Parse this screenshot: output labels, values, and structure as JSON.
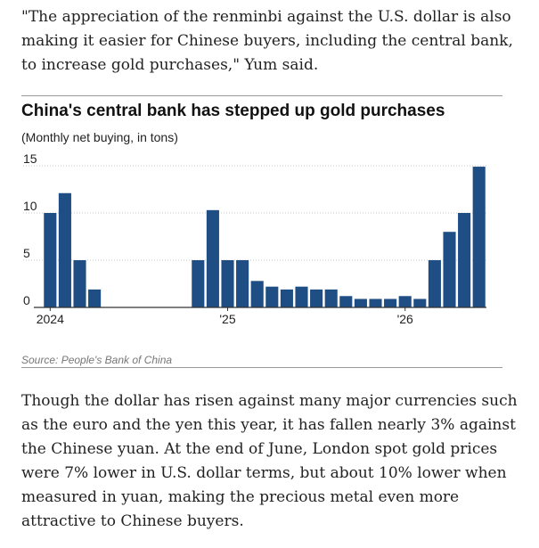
{
  "article": {
    "quote_paragraph": "\"The appreciation of the renminbi against the U.S. dollar is also making it easier for Chinese buyers, including the central bank, to increase gold purchases,\" Yum said.",
    "body_paragraph": "Though the dollar has risen against many major currencies such as the euro and the yen this year, it has fallen nearly 3% against the Chinese yuan. At the end of June, London spot gold prices were 7% lower in U.S. dollar terms, but about 10% lower when measured in yuan, making the precious metal even more attractive to Chinese buyers."
  },
  "chart_data": {
    "type": "bar",
    "title": "China's central bank has stepped up gold purchases",
    "subtitle": "(Monthly net buying, in tons)",
    "source": "Source: People's Bank of China",
    "xlabel": "",
    "ylabel": "",
    "ylim": [
      0,
      15
    ],
    "yticks": [
      0,
      5,
      10,
      15
    ],
    "xtick_labels": [
      "2024",
      "'25",
      "'26"
    ],
    "xtick_indices": [
      0,
      12,
      24
    ],
    "categories": [
      "Jan 2024",
      "Feb 2024",
      "Mar 2024",
      "Apr 2024",
      "May 2024",
      "Jun 2024",
      "Jul 2024",
      "Aug 2024",
      "Sep 2024",
      "Oct 2024",
      "Nov 2024",
      "Dec 2024",
      "Jan 2025",
      "Feb 2025",
      "Mar 2025",
      "Apr 2025",
      "May 2025",
      "Jun 2025",
      "Jul 2025",
      "Aug 2025",
      "Sep 2025",
      "Oct 2025",
      "Nov 2025",
      "Dec 2025",
      "Jan 2026",
      "Feb 2026",
      "Mar 2026",
      "Apr 2026",
      "May 2026",
      "Jun 2026"
    ],
    "values": [
      10,
      12.1,
      5,
      1.9,
      0,
      0,
      0,
      0,
      0,
      0,
      5,
      10.3,
      5,
      5,
      2.8,
      2.2,
      1.9,
      2.2,
      1.9,
      1.9,
      1.2,
      0.9,
      0.9,
      0.9,
      1.2,
      0.9,
      5,
      8,
      10,
      14.9
    ],
    "bar_color": "#1f4e85",
    "grid": true
  }
}
